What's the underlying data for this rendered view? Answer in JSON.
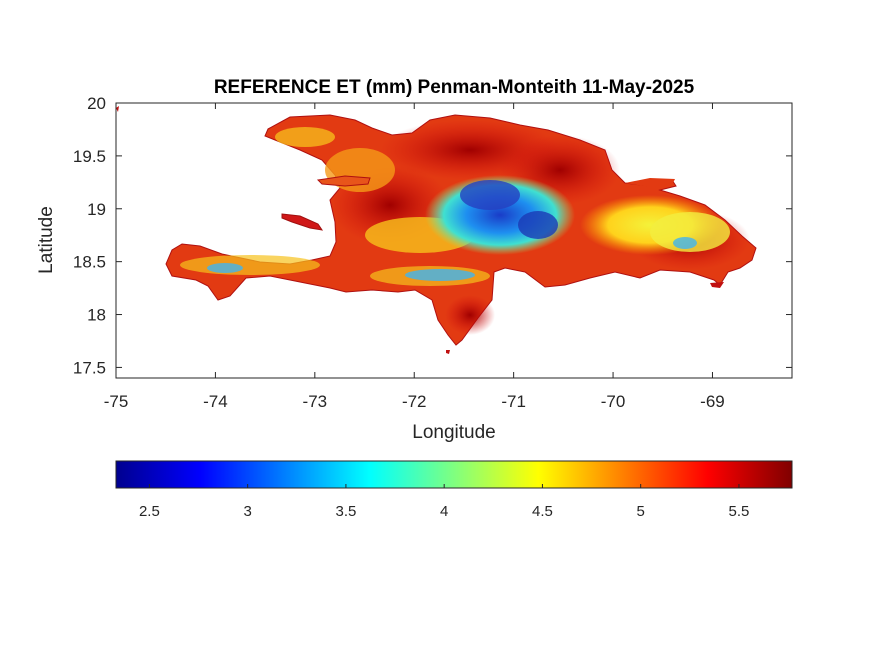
{
  "chart_data": {
    "type": "heatmap",
    "title": "REFERENCE ET (mm) Penman-Monteith 11-May-2025",
    "xlabel": "Longitude",
    "ylabel": "Latitude",
    "xlim": [
      -75,
      -68.2
    ],
    "ylim": [
      17.4,
      20
    ],
    "x_ticks": [
      {
        "value": -75,
        "label": "-75"
      },
      {
        "value": -74,
        "label": "-74"
      },
      {
        "value": -73,
        "label": "-73"
      },
      {
        "value": -72,
        "label": "-72"
      },
      {
        "value": -71,
        "label": "-71"
      },
      {
        "value": -70,
        "label": "-70"
      },
      {
        "value": -69,
        "label": "-69"
      }
    ],
    "y_ticks": [
      {
        "value": 20,
        "label": "20"
      },
      {
        "value": 19.5,
        "label": "19.5"
      },
      {
        "value": 19,
        "label": "19"
      },
      {
        "value": 18.5,
        "label": "18.5"
      },
      {
        "value": 18,
        "label": "18"
      },
      {
        "value": 17.5,
        "label": "17.5"
      }
    ],
    "colorbar": {
      "colormap": "jet",
      "orientation": "horizontal",
      "location": "below",
      "range": [
        2.33,
        5.77
      ],
      "ticks": [
        {
          "value": 2.5,
          "label": "2.5"
        },
        {
          "value": 3,
          "label": "3"
        },
        {
          "value": 3.5,
          "label": "3.5"
        },
        {
          "value": 4,
          "label": "4"
        },
        {
          "value": 4.5,
          "label": "4.5"
        },
        {
          "value": 5,
          "label": "5"
        },
        {
          "value": 5.5,
          "label": "5.5"
        }
      ]
    },
    "grid": false
  }
}
